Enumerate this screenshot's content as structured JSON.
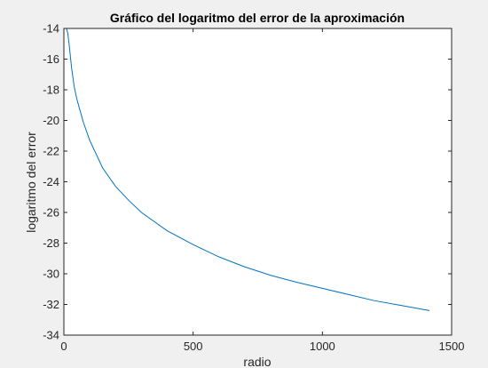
{
  "chart_data": {
    "type": "line",
    "title": "Gráfico del logaritmo del error de la aproximación",
    "xlabel": "radio",
    "ylabel": "logaritmo del error",
    "xlim": [
      0,
      1500
    ],
    "ylim": [
      -34,
      -14
    ],
    "xticks": [
      0,
      500,
      1000,
      1500
    ],
    "xtick_labels": [
      "0",
      "500",
      "1000",
      "1500"
    ],
    "yticks": [
      -34,
      -32,
      -30,
      -28,
      -26,
      -24,
      -22,
      -20,
      -18,
      -16,
      -14
    ],
    "ytick_labels": [
      "-34",
      "-32",
      "-30",
      "-28",
      "-26",
      "-24",
      "-22",
      "-20",
      "-18",
      "-16",
      "-14"
    ],
    "grid": false,
    "legend": null,
    "series": [
      {
        "color": "#0072bd",
        "x": [
          10,
          15,
          20,
          30,
          40,
          50,
          75,
          100,
          150,
          200,
          250,
          300,
          400,
          500,
          600,
          700,
          800,
          900,
          1000,
          1100,
          1200,
          1300,
          1414
        ],
        "y": [
          -14.0,
          -14.3,
          -15.0,
          -16.6,
          -17.8,
          -18.6,
          -20.1,
          -21.3,
          -23.1,
          -24.3,
          -25.2,
          -26.0,
          -27.2,
          -28.1,
          -28.9,
          -29.55,
          -30.1,
          -30.55,
          -30.95,
          -31.35,
          -31.75,
          -32.05,
          -32.4
        ]
      }
    ],
    "axis_color": "#262626",
    "plot_background": "#ffffff",
    "figure_background": "#f0f0f0"
  }
}
